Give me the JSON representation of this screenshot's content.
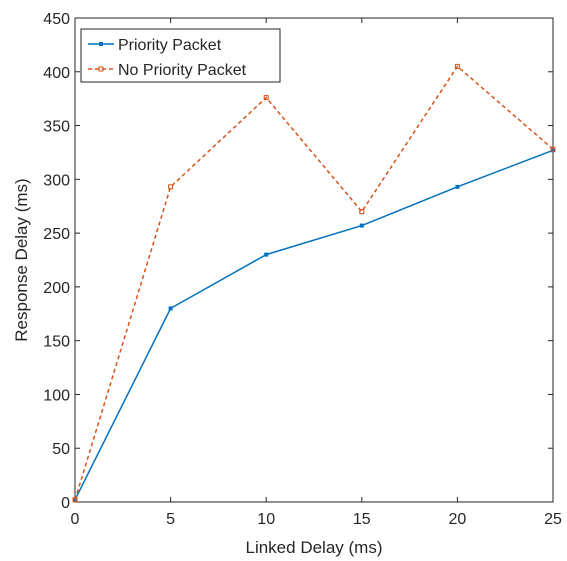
{
  "chart_data": {
    "type": "line",
    "title": "",
    "xlabel": "Linked Delay (ms)",
    "ylabel": "Response Delay (ms)",
    "x": [
      0,
      5,
      10,
      15,
      20,
      25
    ],
    "xlim": [
      0,
      25
    ],
    "ylim": [
      0,
      450
    ],
    "xticks": [
      "0",
      "5",
      "10",
      "15",
      "20",
      "25"
    ],
    "yticks": [
      "0",
      "50",
      "100",
      "150",
      "200",
      "250",
      "300",
      "350",
      "400",
      "450"
    ],
    "grid": false,
    "legend_position": "top-left",
    "series": [
      {
        "name": "Priority Packet",
        "values": [
          2,
          180,
          230,
          257,
          293,
          327
        ],
        "color": "#0072BD",
        "line_style": "solid",
        "marker": "square"
      },
      {
        "name": "No Priority Packet",
        "values": [
          2,
          293,
          376,
          270,
          405,
          328
        ],
        "color": "#D95319",
        "line_style": "dashed",
        "marker": "square"
      }
    ]
  }
}
